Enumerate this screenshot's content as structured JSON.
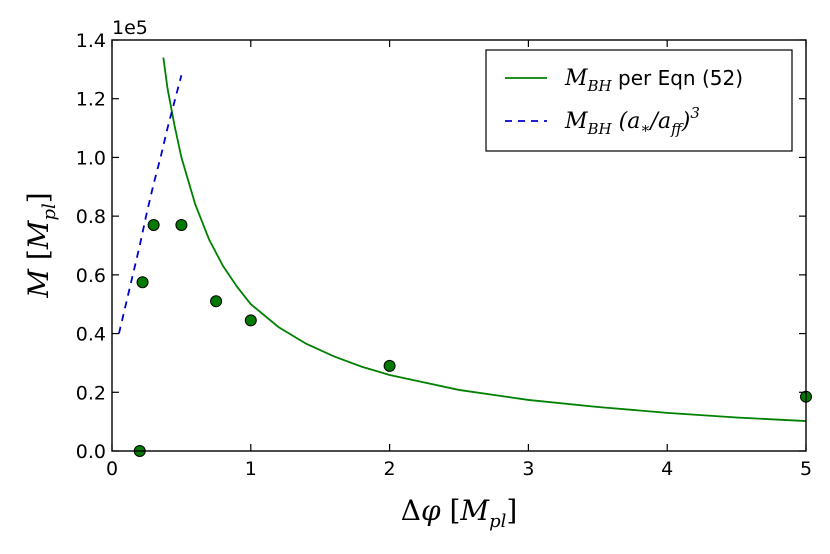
{
  "chart_data": {
    "type": "line",
    "title": "",
    "xlabel": "Δφ [M_pl]",
    "ylabel": "M [M_pl]",
    "xlim": [
      0,
      5
    ],
    "ylim": [
      0,
      140000
    ],
    "x_ticks": [
      0,
      1,
      2,
      3,
      4,
      5
    ],
    "x_tick_labels": [
      "0",
      "1",
      "2",
      "3",
      "4",
      "5"
    ],
    "y_ticks": [
      0,
      20000,
      40000,
      60000,
      80000,
      100000,
      120000,
      140000
    ],
    "y_tick_labels": [
      "0.0",
      "0.2",
      "0.4",
      "0.6",
      "0.8",
      "1.0",
      "1.2",
      "1.4"
    ],
    "y_offset_text": "1e5",
    "grid": false,
    "legend_position": "top-right",
    "legend": [
      {
        "label": "M_BH per Eqn (52)",
        "style": "solid",
        "color": "#008000"
      },
      {
        "label": "M_BH (a_*/a_ff)^3",
        "style": "dashed",
        "color": "#0000cc"
      }
    ],
    "series": [
      {
        "name": "M_BH per Eqn (52)",
        "kind": "line",
        "style": "solid",
        "color": "#008000",
        "x": [
          0.37,
          0.4,
          0.45,
          0.5,
          0.6,
          0.7,
          0.8,
          0.9,
          1.0,
          1.2,
          1.4,
          1.6,
          1.8,
          2.0,
          2.5,
          3.0,
          3.5,
          4.0,
          4.5,
          5.0
        ],
        "values": [
          134000,
          123500,
          111000,
          100000,
          84000,
          72000,
          63000,
          56000,
          50000,
          42200,
          36500,
          32200,
          28700,
          25900,
          20800,
          17400,
          15000,
          13000,
          11400,
          10200
        ]
      },
      {
        "name": "M_BH (a_*/a_ff)^3",
        "kind": "line",
        "style": "dashed",
        "color": "#0000cc",
        "x": [
          0.05,
          0.1,
          0.15,
          0.2,
          0.25,
          0.3,
          0.35,
          0.4,
          0.45,
          0.5
        ],
        "values": [
          40000,
          50000,
          60000,
          70000,
          81000,
          91000,
          100000,
          110000,
          119000,
          128000
        ]
      },
      {
        "kind": "scatter",
        "color": "#007a00",
        "x": [
          0.2,
          0.22,
          0.3,
          0.5,
          0.75,
          1.0,
          2.0,
          5.0
        ],
        "values": [
          0,
          57500,
          77000,
          77000,
          51000,
          44500,
          29000,
          18500
        ]
      }
    ]
  }
}
